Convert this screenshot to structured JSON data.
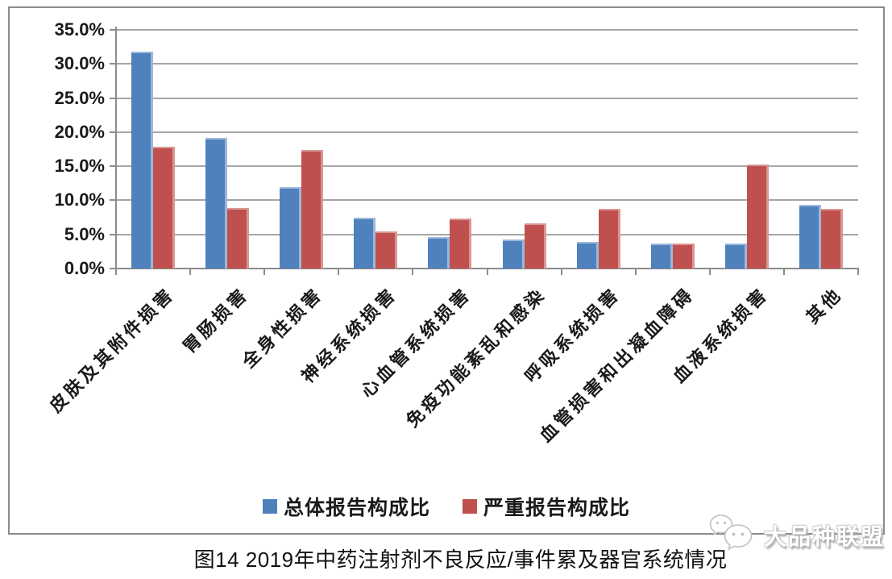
{
  "chart_data": {
    "type": "bar",
    "title": "",
    "xlabel": "",
    "ylabel": "",
    "ylim": [
      0,
      35
    ],
    "grid": "horizontal",
    "legend_position": "bottom",
    "y_ticks": [
      "35.0%",
      "30.0%",
      "25.0%",
      "20.0%",
      "15.0%",
      "10.0%",
      "5.0%",
      "0.0%"
    ],
    "categories": [
      "皮肤及其附件损害",
      "胃肠损害",
      "全身性损害",
      "神经系统损害",
      "心血管系统损害",
      "免疫功能紊乱和感染",
      "呼吸系统损害",
      "血管损害和出凝血障碍",
      "血液系统损害",
      "其他"
    ],
    "series": [
      {
        "key": "overall",
        "name": "总体报告构成比",
        "color": "#4F81BD",
        "highlight": "#9CB8DC",
        "values": [
          31.8,
          19.1,
          12.0,
          7.4,
          4.6,
          4.3,
          3.9,
          3.7,
          3.7,
          9.3
        ]
      },
      {
        "key": "serious",
        "name": "严重报告构成比",
        "color": "#C0504D",
        "highlight": "#D99694",
        "values": [
          17.8,
          8.9,
          17.4,
          5.4,
          7.3,
          6.6,
          8.7,
          3.7,
          15.2,
          8.7
        ]
      }
    ]
  },
  "caption": "图14 2019年中药注射剂不良反应/事件累及器官系统情况",
  "watermark": {
    "icon": "wechat-icon",
    "text": "大品种联盟"
  },
  "colors": {
    "grid": "#A6A6A6",
    "axis": "#8C8C8C",
    "frame": "#8A8A8A",
    "text": "#1A1A1A"
  }
}
